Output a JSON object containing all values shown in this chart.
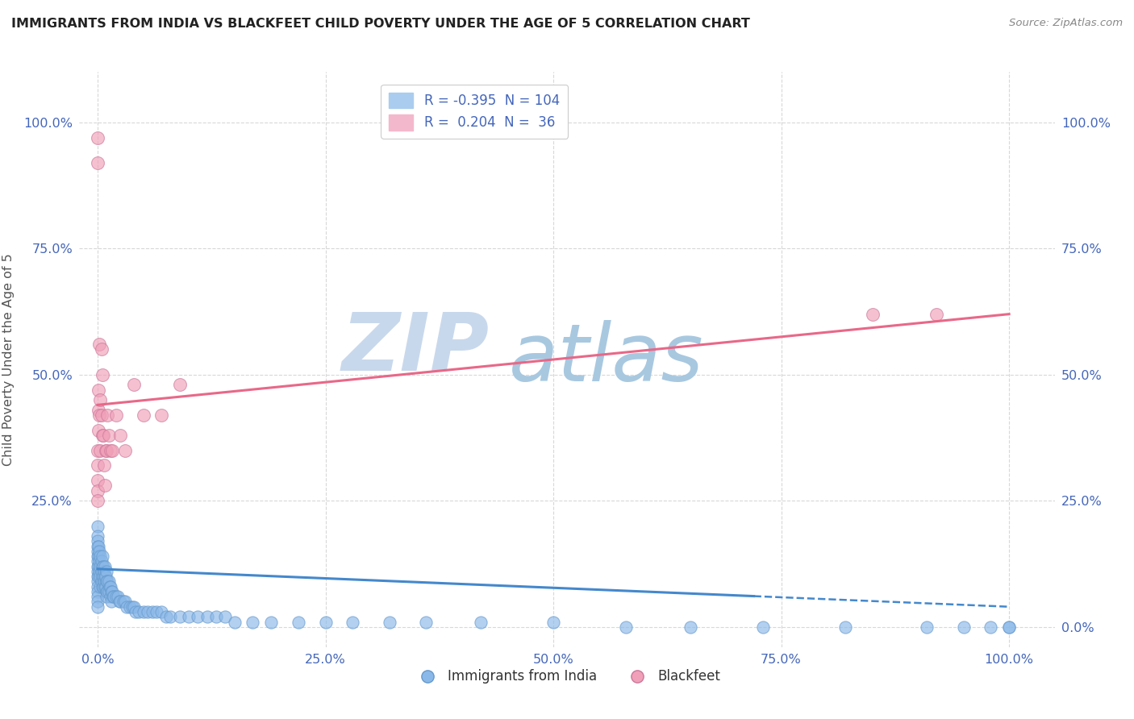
{
  "title": "IMMIGRANTS FROM INDIA VS BLACKFEET CHILD POVERTY UNDER THE AGE OF 5 CORRELATION CHART",
  "source": "Source: ZipAtlas.com",
  "ylabel": "Child Poverty Under the Age of 5",
  "blue_color": "#8ab8e8",
  "pink_color": "#f0a0b8",
  "blue_line_color": "#4488cc",
  "pink_line_color": "#e86888",
  "watermark_color_zip": "#c8d8ec",
  "watermark_color_atlas": "#a8c8e0",
  "grid_color": "#d8d8d8",
  "title_color": "#222222",
  "tick_label_color": "#4466bb",
  "legend_r1": "R = -0.395",
  "legend_n1": "N = 104",
  "legend_r2": "R =  0.204",
  "legend_n2": "N =  36",
  "blue_scatter_x": [
    0.0,
    0.0,
    0.0,
    0.0,
    0.0,
    0.0,
    0.0,
    0.0,
    0.0,
    0.0,
    0.0,
    0.0,
    0.0,
    0.0,
    0.0,
    0.0,
    0.001,
    0.001,
    0.001,
    0.001,
    0.002,
    0.002,
    0.002,
    0.003,
    0.003,
    0.003,
    0.003,
    0.004,
    0.004,
    0.004,
    0.005,
    0.005,
    0.005,
    0.005,
    0.006,
    0.006,
    0.006,
    0.007,
    0.007,
    0.008,
    0.008,
    0.008,
    0.009,
    0.009,
    0.01,
    0.01,
    0.01,
    0.01,
    0.011,
    0.011,
    0.012,
    0.012,
    0.013,
    0.014,
    0.014,
    0.015,
    0.015,
    0.016,
    0.017,
    0.018,
    0.02,
    0.022,
    0.024,
    0.025,
    0.028,
    0.03,
    0.032,
    0.035,
    0.038,
    0.04,
    0.042,
    0.045,
    0.05,
    0.055,
    0.06,
    0.065,
    0.07,
    0.075,
    0.08,
    0.09,
    0.1,
    0.11,
    0.12,
    0.13,
    0.14,
    0.15,
    0.17,
    0.19,
    0.22,
    0.25,
    0.28,
    0.32,
    0.36,
    0.42,
    0.5,
    0.58,
    0.65,
    0.73,
    0.82,
    0.91,
    0.95,
    0.98,
    1.0,
    1.0
  ],
  "blue_scatter_y": [
    0.2,
    0.18,
    0.17,
    0.16,
    0.15,
    0.14,
    0.13,
    0.12,
    0.11,
    0.1,
    0.09,
    0.08,
    0.07,
    0.06,
    0.05,
    0.04,
    0.16,
    0.14,
    0.12,
    0.1,
    0.15,
    0.13,
    0.11,
    0.14,
    0.12,
    0.1,
    0.08,
    0.13,
    0.11,
    0.09,
    0.14,
    0.12,
    0.1,
    0.08,
    0.12,
    0.1,
    0.08,
    0.11,
    0.09,
    0.12,
    0.1,
    0.08,
    0.1,
    0.08,
    0.11,
    0.09,
    0.07,
    0.06,
    0.09,
    0.07,
    0.09,
    0.07,
    0.08,
    0.08,
    0.06,
    0.07,
    0.05,
    0.07,
    0.06,
    0.06,
    0.06,
    0.06,
    0.05,
    0.05,
    0.05,
    0.05,
    0.04,
    0.04,
    0.04,
    0.04,
    0.03,
    0.03,
    0.03,
    0.03,
    0.03,
    0.03,
    0.03,
    0.02,
    0.02,
    0.02,
    0.02,
    0.02,
    0.02,
    0.02,
    0.02,
    0.01,
    0.01,
    0.01,
    0.01,
    0.01,
    0.01,
    0.01,
    0.01,
    0.01,
    0.01,
    0.0,
    0.0,
    0.0,
    0.0,
    0.0,
    0.0,
    0.0,
    0.0,
    0.0
  ],
  "pink_scatter_x": [
    0.0,
    0.0,
    0.0,
    0.0,
    0.0,
    0.0,
    0.0,
    0.001,
    0.001,
    0.001,
    0.002,
    0.002,
    0.003,
    0.003,
    0.004,
    0.004,
    0.005,
    0.005,
    0.006,
    0.007,
    0.008,
    0.009,
    0.01,
    0.011,
    0.012,
    0.014,
    0.016,
    0.02,
    0.025,
    0.03,
    0.04,
    0.05,
    0.07,
    0.09,
    0.85,
    0.92
  ],
  "pink_scatter_y": [
    0.97,
    0.92,
    0.35,
    0.32,
    0.29,
    0.27,
    0.25,
    0.47,
    0.43,
    0.39,
    0.56,
    0.42,
    0.45,
    0.35,
    0.55,
    0.42,
    0.5,
    0.38,
    0.38,
    0.32,
    0.28,
    0.35,
    0.35,
    0.42,
    0.38,
    0.35,
    0.35,
    0.42,
    0.38,
    0.35,
    0.48,
    0.42,
    0.42,
    0.48,
    0.62,
    0.62
  ],
  "blue_trend_x": [
    0.0,
    1.0
  ],
  "blue_trend_y": [
    0.115,
    0.04
  ],
  "blue_trend_solid_end": 0.72,
  "pink_trend_x": [
    0.0,
    1.0
  ],
  "pink_trend_y": [
    0.44,
    0.62
  ],
  "xlim": [
    -0.02,
    1.05
  ],
  "ylim": [
    -0.04,
    1.1
  ],
  "xticks": [
    0.0,
    0.25,
    0.5,
    0.75,
    1.0
  ],
  "xtick_labels": [
    "0.0%",
    "25.0%",
    "50.0%",
    "75.0%",
    "100.0%"
  ],
  "yticks": [
    0.0,
    0.25,
    0.5,
    0.75,
    1.0
  ],
  "left_ytick_labels": [
    "",
    "25.0%",
    "50.0%",
    "75.0%",
    "100.0%"
  ],
  "right_ytick_labels": [
    "0.0%",
    "25.0%",
    "50.0%",
    "75.0%",
    "100.0%"
  ]
}
